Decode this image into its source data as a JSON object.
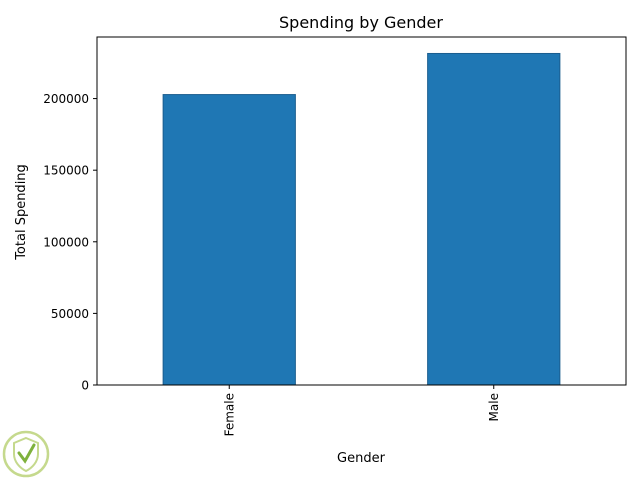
{
  "chart_data": {
    "type": "bar",
    "title": "Spending by Gender",
    "xlabel": "Gender",
    "ylabel": "Total Spending",
    "categories": [
      "Female",
      "Male"
    ],
    "values": [
      202800,
      231500
    ],
    "ylim": [
      0,
      243000
    ],
    "yticks": [
      0,
      50000,
      100000,
      150000,
      200000
    ],
    "ytick_labels": [
      "0",
      "50000",
      "100000",
      "150000",
      "200000"
    ],
    "grid": false,
    "legend": "none",
    "bar_color": "#1f77b4",
    "bar_edge_color": "#1a5d8f"
  },
  "watermark": {
    "icon": "shield-logo-icon",
    "colors": [
      "#7fb13d",
      "#c5d98d"
    ]
  }
}
